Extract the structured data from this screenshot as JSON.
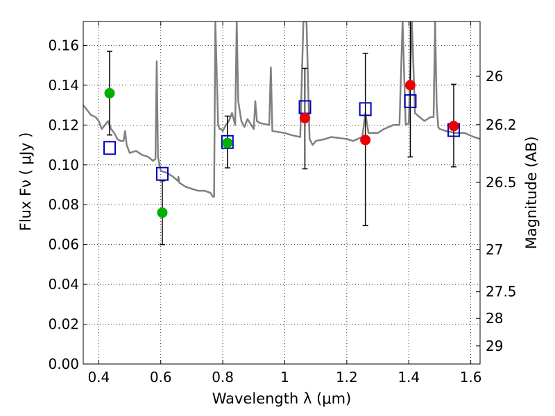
{
  "chart_data": {
    "type": "scatter",
    "title": "",
    "xlabel": "Wavelength  λ (μm)",
    "ylabel": "Flux  Fν  ( μJy )",
    "ylabel_right": "Magnitude (AB)",
    "xlim": [
      0.35,
      1.63
    ],
    "ylim": [
      0.0,
      0.172
    ],
    "grid": true,
    "x_ticks": [
      0.4,
      0.6,
      0.8,
      1.0,
      1.2,
      1.4,
      1.6
    ],
    "x_tick_labels": [
      "0.4",
      "0.6",
      "0.8",
      "1",
      "1.2",
      "1.4",
      "1.6"
    ],
    "y_ticks": [
      0.0,
      0.02,
      0.04,
      0.06,
      0.08,
      0.1,
      0.12,
      0.14,
      0.16
    ],
    "y_tick_labels": [
      "0.00",
      "0.02",
      "0.04",
      "0.06",
      "0.08",
      "0.10",
      "0.12",
      "0.14",
      "0.16"
    ],
    "right_ticks": [
      {
        "label": "26",
        "flux": 0.1445
      },
      {
        "label": "26.2",
        "flux": 0.1202
      },
      {
        "label": "26.5",
        "flux": 0.0912
      },
      {
        "label": "27",
        "flux": 0.0575
      },
      {
        "label": "27.5",
        "flux": 0.0363
      },
      {
        "label": "28",
        "flux": 0.0229
      },
      {
        "label": "29",
        "flux": 0.0091
      }
    ],
    "series": [
      {
        "name": "model_spectrum",
        "kind": "line",
        "color": "#808080",
        "x": [
          0.35,
          0.36,
          0.375,
          0.39,
          0.4,
          0.41,
          0.42,
          0.43,
          0.44,
          0.45,
          0.46,
          0.47,
          0.48,
          0.485,
          0.49,
          0.5,
          0.52,
          0.54,
          0.56,
          0.575,
          0.583,
          0.587,
          0.591,
          0.6,
          0.62,
          0.64,
          0.655,
          0.657,
          0.66,
          0.68,
          0.7,
          0.72,
          0.74,
          0.76,
          0.768,
          0.772,
          0.776,
          0.785,
          0.79,
          0.795,
          0.8,
          0.81,
          0.82,
          0.83,
          0.84,
          0.845,
          0.85,
          0.86,
          0.87,
          0.88,
          0.9,
          0.905,
          0.91,
          0.92,
          0.95,
          0.955,
          0.96,
          1.0,
          1.02,
          1.05,
          1.06,
          1.07,
          1.08,
          1.09,
          1.1,
          1.13,
          1.15,
          1.2,
          1.22,
          1.25,
          1.26,
          1.27,
          1.3,
          1.32,
          1.35,
          1.37,
          1.38,
          1.39,
          1.4,
          1.41,
          1.42,
          1.45,
          1.47,
          1.48,
          1.485,
          1.49,
          1.495,
          1.5,
          1.52,
          1.55,
          1.58,
          1.61,
          1.63
        ],
        "y": [
          0.13,
          0.128,
          0.125,
          0.124,
          0.122,
          0.118,
          0.12,
          0.122,
          0.118,
          0.116,
          0.113,
          0.112,
          0.112,
          0.117,
          0.11,
          0.106,
          0.107,
          0.105,
          0.104,
          0.102,
          0.103,
          0.152,
          0.104,
          0.097,
          0.096,
          0.094,
          0.092,
          0.094,
          0.091,
          0.089,
          0.088,
          0.087,
          0.087,
          0.086,
          0.084,
          0.084,
          0.172,
          0.12,
          0.118,
          0.118,
          0.117,
          0.12,
          0.122,
          0.126,
          0.12,
          0.172,
          0.132,
          0.122,
          0.119,
          0.123,
          0.118,
          0.132,
          0.122,
          0.121,
          0.12,
          0.149,
          0.117,
          0.116,
          0.115,
          0.114,
          0.172,
          0.172,
          0.113,
          0.11,
          0.112,
          0.113,
          0.114,
          0.113,
          0.112,
          0.114,
          0.126,
          0.116,
          0.116,
          0.118,
          0.12,
          0.12,
          0.172,
          0.12,
          0.121,
          0.172,
          0.126,
          0.122,
          0.124,
          0.124,
          0.172,
          0.13,
          0.119,
          0.118,
          0.117,
          0.116,
          0.116,
          0.114,
          0.113
        ]
      },
      {
        "name": "model_photometry",
        "kind": "marker",
        "marker": "square",
        "color": "#0000c0",
        "x": [
          0.435,
          0.605,
          0.815,
          1.065,
          1.26,
          1.405,
          1.545
        ],
        "y": [
          0.1085,
          0.0955,
          0.1115,
          0.129,
          0.128,
          0.132,
          0.1175
        ]
      },
      {
        "name": "detections_optical",
        "kind": "marker",
        "marker": "circle",
        "color": "#00b000",
        "x": [
          0.435,
          0.605,
          0.815
        ],
        "y": [
          0.136,
          0.076,
          0.111
        ],
        "err_low": [
          0.115,
          0.06,
          0.0985
        ],
        "err_high": [
          0.157,
          0.092,
          0.1245
        ]
      },
      {
        "name": "detections_nir",
        "kind": "marker",
        "marker": "circle",
        "color": "#ee0000",
        "x": [
          1.065,
          1.26,
          1.405,
          1.545
        ],
        "y": [
          0.1235,
          0.1125,
          0.14,
          0.1195
        ],
        "err_low": [
          0.098,
          0.0695,
          0.104,
          0.099
        ],
        "err_high": [
          0.1485,
          0.156,
          0.172,
          0.1405
        ]
      }
    ]
  }
}
